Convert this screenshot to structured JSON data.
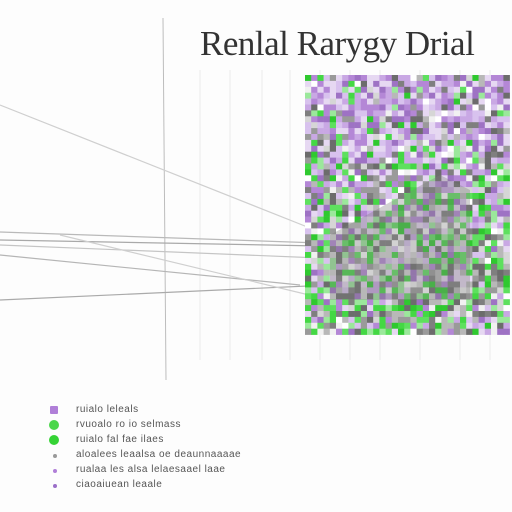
{
  "title": "Renlal Rarygy Drial",
  "colors": {
    "purple": "#b487d6",
    "green": "#3fdc3f",
    "gray": "#8a8a8a",
    "light_gray": "#c9c9c9"
  },
  "legend": [
    {
      "label": "ruialo leleals",
      "color": "#b07fd8",
      "marker": "square-icon"
    },
    {
      "label": "rvuoalo ro io selmass",
      "color": "#4bd64b",
      "marker": "circle-icon"
    },
    {
      "label": "ruialo fal fae ilaes",
      "color": "#35d335",
      "marker": "circle-icon"
    },
    {
      "label": "aloalees leaalsa oe deaunnaaaae",
      "color": "#9a9a9a",
      "marker": "dot-icon"
    },
    {
      "label": "rualaa les alsa lelaesaael laae",
      "color": "#b07fd8",
      "marker": "dot-icon"
    },
    {
      "label": "ciaoaiuean leaale",
      "color": "#9b6fc8",
      "marker": "dot-icon"
    }
  ]
}
